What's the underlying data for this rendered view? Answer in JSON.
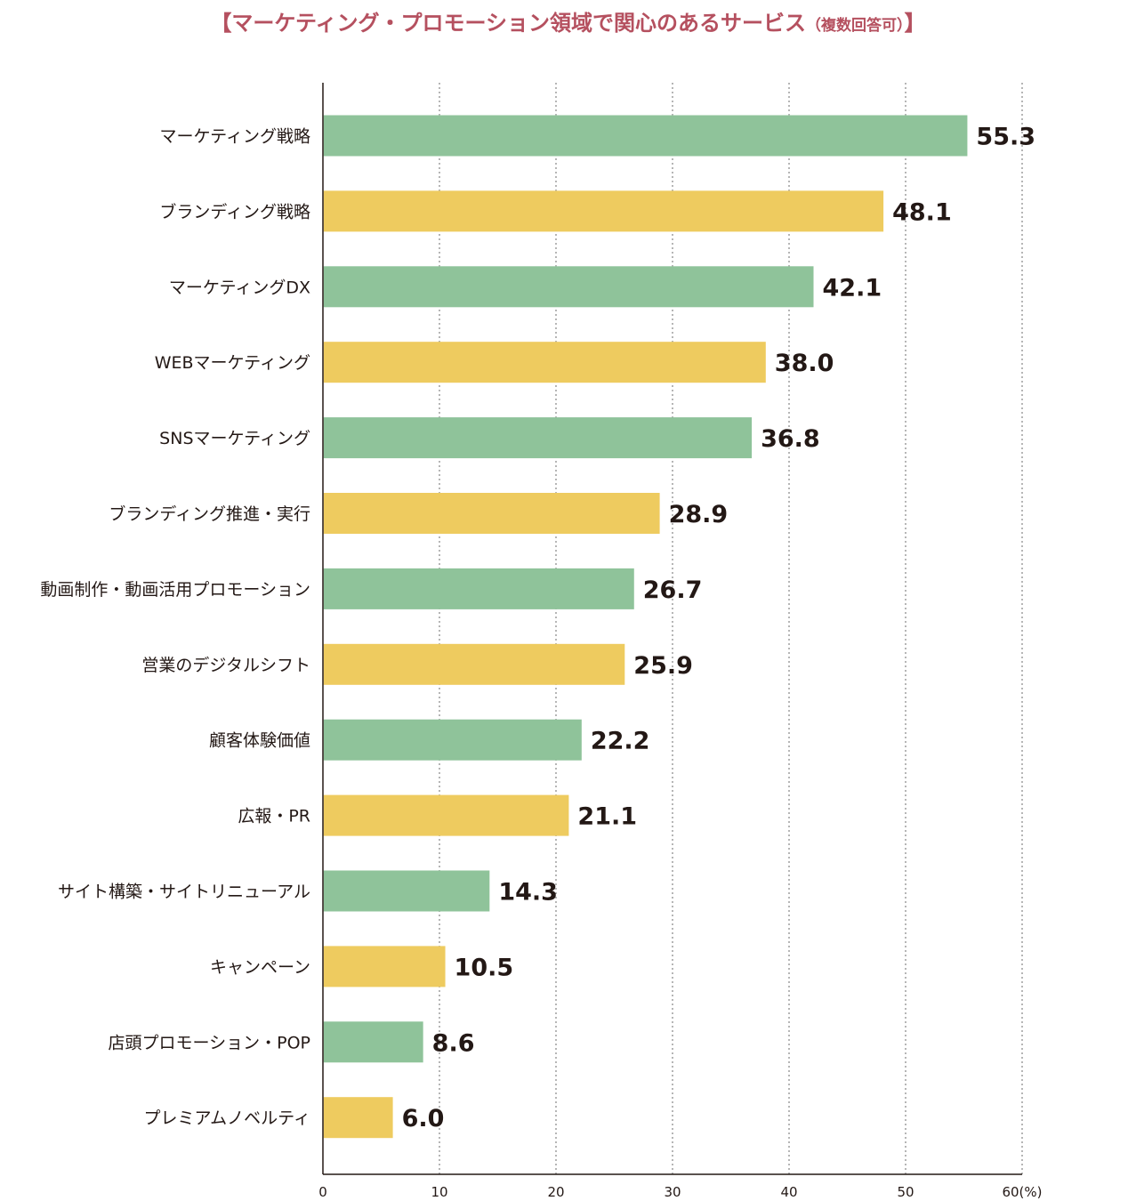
{
  "chart_data": {
    "type": "bar",
    "orientation": "horizontal",
    "title": "【マーケティング・プロモーション領域で関心のあるサービス",
    "title_note": "（複数回答可）",
    "title_close": "】",
    "categories": [
      "マーケティング戦略",
      "ブランディング戦略",
      "マーケティングDX",
      "WEBマーケティング",
      "SNSマーケティング",
      "ブランディング推進・実行",
      "動画制作・動画活用プロモーション",
      "営業のデジタルシフト",
      "顧客体験価値",
      "広報・PR",
      "サイト構築・サイトリニューアル",
      "キャンペーン",
      "店頭プロモーション・POP",
      "プレミアムノベルティ"
    ],
    "values": [
      55.3,
      48.1,
      42.1,
      38.0,
      36.8,
      28.9,
      26.7,
      25.9,
      22.2,
      21.1,
      14.3,
      10.5,
      8.6,
      6.0
    ],
    "value_labels": [
      "55.3",
      "48.1",
      "42.1",
      "38.0",
      "36.8",
      "28.9",
      "26.7",
      "25.9",
      "22.2",
      "21.1",
      "14.3",
      "10.5",
      "8.6",
      "6.0"
    ],
    "xlim": [
      0,
      60
    ],
    "xticks": [
      0,
      10,
      20,
      30,
      40,
      50,
      60
    ],
    "xtick_labels": [
      "0",
      "10",
      "20",
      "30",
      "40",
      "50",
      "60(%)"
    ],
    "grid": "vertical dotted",
    "bar_colors": [
      "#8fc39a",
      "#eecb5f"
    ]
  }
}
